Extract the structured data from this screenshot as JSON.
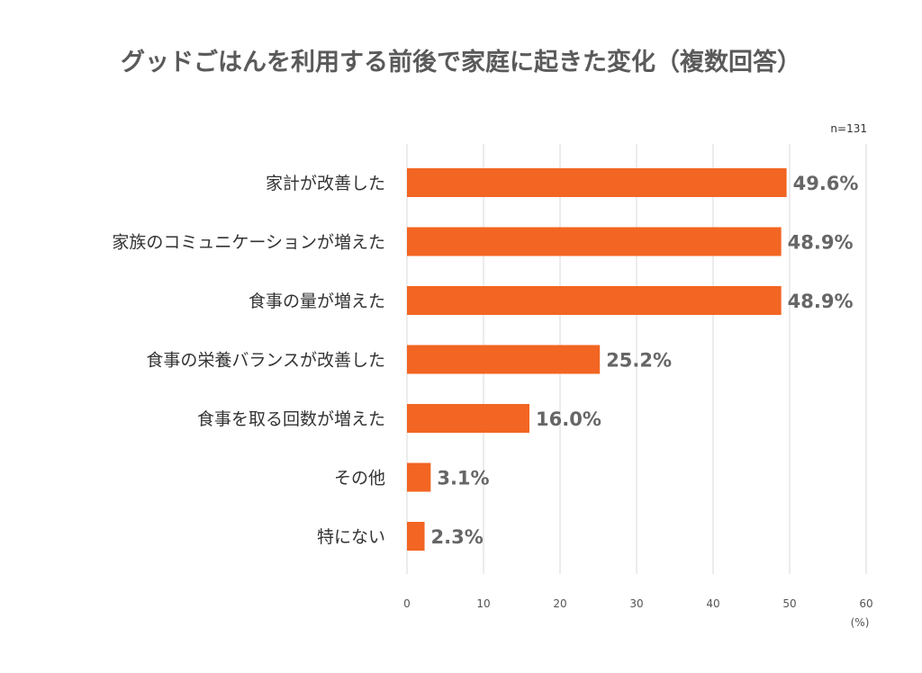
{
  "chart_data": {
    "type": "bar",
    "orientation": "horizontal",
    "title": "グッドごはんを利用する前後で家庭に起きた変化（複数回答）",
    "sample_note": "n=131",
    "unit_label": "(%)",
    "categories": [
      "家計が改善した",
      "家族のコミュニケーションが増えた",
      "食事の量が増えた",
      "食事の栄養バランスが改善した",
      "食事を取る回数が増えた",
      "その他",
      "特にない"
    ],
    "values": [
      49.6,
      48.9,
      48.9,
      25.2,
      16.0,
      3.1,
      2.3
    ],
    "value_labels": [
      "49.6%",
      "48.9%",
      "48.9%",
      "25.2%",
      "16.0%",
      "3.1%",
      "2.3%"
    ],
    "xlim": [
      0,
      60
    ],
    "xticks": [
      0,
      10,
      20,
      30,
      40,
      50,
      60
    ],
    "xtick_labels": [
      "0",
      "10",
      "20",
      "30",
      "40",
      "50",
      "60"
    ],
    "grid": true,
    "bar_color": "#f26522",
    "grid_color": "#d9d9d9"
  }
}
